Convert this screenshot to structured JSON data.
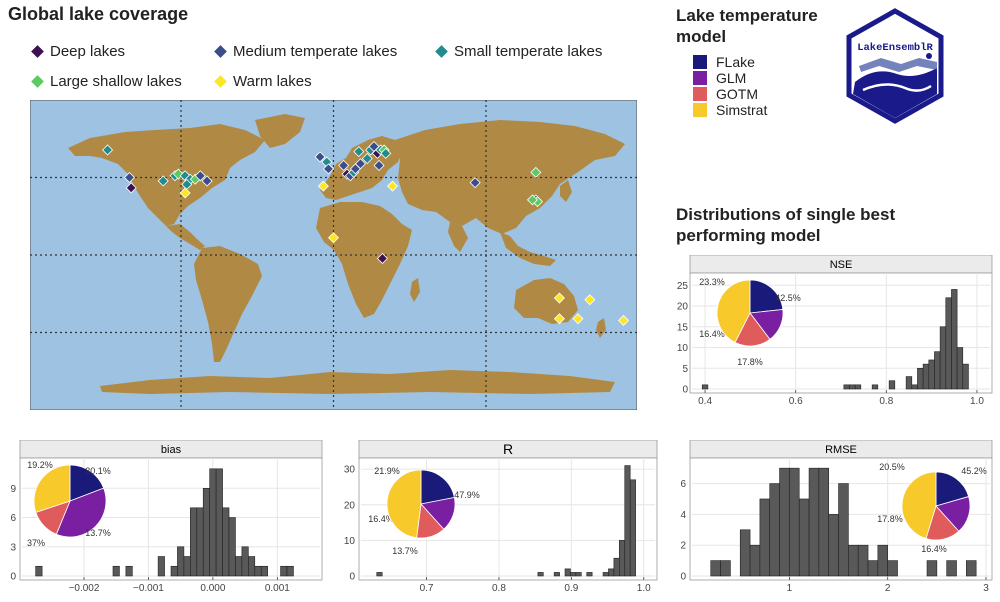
{
  "map": {
    "title": "Global lake coverage",
    "legend": [
      {
        "label": "Deep lakes",
        "color": "#3b1150"
      },
      {
        "label": "Medium temperate lakes",
        "color": "#3b4e8c"
      },
      {
        "label": "Small temperate lakes",
        "color": "#238a8d"
      },
      {
        "label": "Large shallow lakes",
        "color": "#5ec962"
      },
      {
        "label": "Warm lakes",
        "color": "#fde725"
      }
    ],
    "ocean_color": "#9ec2e2",
    "land_color": "#b08a45",
    "lakes": [
      {
        "lon": -134,
        "lat": 61,
        "type": 2
      },
      {
        "lon": -121,
        "lat": 45,
        "type": 1
      },
      {
        "lon": -120,
        "lat": 39,
        "type": 0
      },
      {
        "lon": -101,
        "lat": 43,
        "type": 2
      },
      {
        "lon": -94,
        "lat": 46,
        "type": 2
      },
      {
        "lon": -92,
        "lat": 47,
        "type": 3
      },
      {
        "lon": -88,
        "lat": 46,
        "type": 2
      },
      {
        "lon": -85,
        "lat": 44,
        "type": 2
      },
      {
        "lon": -82,
        "lat": 44,
        "type": 3
      },
      {
        "lon": -79,
        "lat": 46,
        "type": 1
      },
      {
        "lon": -75,
        "lat": 43,
        "type": 1
      },
      {
        "lon": -87,
        "lat": 41,
        "type": 2
      },
      {
        "lon": -88,
        "lat": 36,
        "type": 4
      },
      {
        "lon": -8,
        "lat": 57,
        "type": 1
      },
      {
        "lon": -4,
        "lat": 54,
        "type": 2
      },
      {
        "lon": -3,
        "lat": 50,
        "type": 1
      },
      {
        "lon": -6,
        "lat": 40,
        "type": 4
      },
      {
        "lon": 6,
        "lat": 52,
        "type": 1
      },
      {
        "lon": 8,
        "lat": 47,
        "type": 0
      },
      {
        "lon": 10,
        "lat": 46,
        "type": 1
      },
      {
        "lon": 12,
        "lat": 48,
        "type": 2
      },
      {
        "lon": 13,
        "lat": 50,
        "type": 1
      },
      {
        "lon": 15,
        "lat": 60,
        "type": 2
      },
      {
        "lon": 22,
        "lat": 61,
        "type": 2
      },
      {
        "lon": 24,
        "lat": 63,
        "type": 1
      },
      {
        "lon": 26,
        "lat": 59,
        "type": 0
      },
      {
        "lon": 28,
        "lat": 61,
        "type": 2
      },
      {
        "lon": 30,
        "lat": 61,
        "type": 3
      },
      {
        "lon": 31,
        "lat": 59,
        "type": 2
      },
      {
        "lon": 20,
        "lat": 56,
        "type": 2
      },
      {
        "lon": 27,
        "lat": 52,
        "type": 1
      },
      {
        "lon": 16,
        "lat": 53,
        "type": 1
      },
      {
        "lon": 35,
        "lat": 40,
        "type": 4
      },
      {
        "lon": 29,
        "lat": -2,
        "type": 0
      },
      {
        "lon": 0,
        "lat": 10,
        "type": 4
      },
      {
        "lon": 84,
        "lat": 42,
        "type": 1
      },
      {
        "lon": 120,
        "lat": 48,
        "type": 3
      },
      {
        "lon": 120,
        "lat": 32,
        "type": 1
      },
      {
        "lon": 121,
        "lat": 31,
        "type": 3
      },
      {
        "lon": 118,
        "lat": 32,
        "type": 3
      },
      {
        "lon": 134,
        "lat": -25,
        "type": 4
      },
      {
        "lon": 145,
        "lat": -37,
        "type": 4
      },
      {
        "lon": 152,
        "lat": -26,
        "type": 4
      },
      {
        "lon": 172,
        "lat": -38,
        "type": 4
      },
      {
        "lon": 134,
        "lat": -37,
        "type": 4
      }
    ]
  },
  "model_legend": {
    "title": "Lake temperature model",
    "items": [
      {
        "label": "FLake",
        "color": "#1a1a7a"
      },
      {
        "label": "GLM",
        "color": "#7b1fa2"
      },
      {
        "label": "GOTM",
        "color": "#e05c5c"
      },
      {
        "label": "Simstrat",
        "color": "#f7c92a"
      }
    ]
  },
  "logo": {
    "text": "LakeEnsemblR"
  },
  "distributions_title": "Distributions of single best performing model",
  "chart_data": [
    {
      "type": "bar",
      "title": "NSE",
      "xlim": [
        0.38,
        1.02
      ],
      "ylim": [
        0,
        27
      ],
      "xticks": [
        0.4,
        0.6,
        0.8,
        1.0
      ],
      "xtick_labels": [
        "0.4",
        "0.6",
        "0.8",
        "1.0"
      ],
      "yticks": [
        0,
        5,
        10,
        15,
        20,
        25
      ],
      "binwidth": 0.0125,
      "bins": [
        {
          "x": 0.4,
          "y": 1
        },
        {
          "x": 0.7125,
          "y": 1
        },
        {
          "x": 0.725,
          "y": 1
        },
        {
          "x": 0.7375,
          "y": 1
        },
        {
          "x": 0.775,
          "y": 1
        },
        {
          "x": 0.8125,
          "y": 2
        },
        {
          "x": 0.85,
          "y": 3
        },
        {
          "x": 0.8625,
          "y": 1
        },
        {
          "x": 0.875,
          "y": 5
        },
        {
          "x": 0.8875,
          "y": 6
        },
        {
          "x": 0.9,
          "y": 7
        },
        {
          "x": 0.9125,
          "y": 9
        },
        {
          "x": 0.925,
          "y": 15
        },
        {
          "x": 0.9375,
          "y": 22
        },
        {
          "x": 0.95,
          "y": 24
        },
        {
          "x": 0.9625,
          "y": 10
        },
        {
          "x": 0.975,
          "y": 6
        }
      ],
      "pie": {
        "values": [
          23.3,
          16.4,
          17.8,
          42.5
        ],
        "labels": [
          "23.3%",
          "16.4%",
          "17.8%",
          "42.5%"
        ]
      }
    },
    {
      "type": "bar",
      "title": "bias",
      "xlim": [
        -0.0029,
        0.0016
      ],
      "ylim": [
        0,
        11.7
      ],
      "xticks": [
        -0.002,
        -0.001,
        0.0,
        0.001
      ],
      "xtick_labels": [
        "−0.002",
        "−0.001",
        "0.000",
        "0.001"
      ],
      "yticks": [
        0,
        3,
        6,
        9
      ],
      "yticklabels": [
        "0",
        "3",
        "6",
        "9"
      ],
      "binwidth": 0.0001,
      "bins": [
        {
          "x": -0.0027,
          "y": 1
        },
        {
          "x": -0.0015,
          "y": 1
        },
        {
          "x": -0.0013,
          "y": 1
        },
        {
          "x": -0.0008,
          "y": 2
        },
        {
          "x": -0.0006,
          "y": 1
        },
        {
          "x": -0.0005,
          "y": 3
        },
        {
          "x": -0.0004,
          "y": 2
        },
        {
          "x": -0.0003,
          "y": 7
        },
        {
          "x": -0.0002,
          "y": 7
        },
        {
          "x": -0.0001,
          "y": 9
        },
        {
          "x": 0.0,
          "y": 11
        },
        {
          "x": 0.0001,
          "y": 11
        },
        {
          "x": 0.0002,
          "y": 7
        },
        {
          "x": 0.0003,
          "y": 6
        },
        {
          "x": 0.0004,
          "y": 2
        },
        {
          "x": 0.0005,
          "y": 3
        },
        {
          "x": 0.0006,
          "y": 2
        },
        {
          "x": 0.0007,
          "y": 1
        },
        {
          "x": 0.0008,
          "y": 1
        },
        {
          "x": 0.0011,
          "y": 1
        },
        {
          "x": 0.0012,
          "y": 1
        }
      ],
      "pie": {
        "values": [
          19.2,
          37,
          13.7,
          30.1
        ],
        "labels": [
          "19.2%",
          "37%",
          "13.7%",
          "30.1%"
        ]
      }
    },
    {
      "type": "bar",
      "title": "R",
      "xlim": [
        0.615,
        1.01
      ],
      "ylim": [
        0,
        32
      ],
      "xticks": [
        0.7,
        0.8,
        0.9,
        1.0
      ],
      "xtick_labels": [
        "0.7",
        "0.8",
        "0.9",
        "1.0"
      ],
      "yticks": [
        0,
        10,
        20,
        30
      ],
      "binwidth": 0.0075,
      "bins": [
        {
          "x": 0.635,
          "y": 1
        },
        {
          "x": 0.8575,
          "y": 1
        },
        {
          "x": 0.88,
          "y": 1
        },
        {
          "x": 0.895,
          "y": 2
        },
        {
          "x": 0.9025,
          "y": 1
        },
        {
          "x": 0.91,
          "y": 1
        },
        {
          "x": 0.925,
          "y": 1
        },
        {
          "x": 0.9475,
          "y": 1
        },
        {
          "x": 0.955,
          "y": 2
        },
        {
          "x": 0.9625,
          "y": 5
        },
        {
          "x": 0.97,
          "y": 10
        },
        {
          "x": 0.9775,
          "y": 31
        },
        {
          "x": 0.985,
          "y": 27
        }
      ],
      "pie": {
        "values": [
          21.9,
          16.4,
          13.7,
          47.9
        ],
        "labels": [
          "21.9%",
          "16.4%",
          "13.7%",
          "47.9%"
        ]
      }
    },
    {
      "type": "bar",
      "title": "RMSE",
      "xlim": [
        0.05,
        3.0
      ],
      "ylim": [
        0,
        7.4
      ],
      "xticks": [
        1,
        2,
        3
      ],
      "xtick_labels": [
        "1",
        "2",
        "3"
      ],
      "yticks": [
        0,
        2,
        4,
        6
      ],
      "binwidth": 0.1,
      "bins": [
        {
          "x": 0.25,
          "y": 1
        },
        {
          "x": 0.35,
          "y": 1
        },
        {
          "x": 0.55,
          "y": 3
        },
        {
          "x": 0.65,
          "y": 2
        },
        {
          "x": 0.75,
          "y": 5
        },
        {
          "x": 0.85,
          "y": 6
        },
        {
          "x": 0.95,
          "y": 7
        },
        {
          "x": 1.05,
          "y": 7
        },
        {
          "x": 1.15,
          "y": 5
        },
        {
          "x": 1.25,
          "y": 7
        },
        {
          "x": 1.35,
          "y": 7
        },
        {
          "x": 1.45,
          "y": 4
        },
        {
          "x": 1.55,
          "y": 6
        },
        {
          "x": 1.65,
          "y": 2
        },
        {
          "x": 1.75,
          "y": 2
        },
        {
          "x": 1.85,
          "y": 1
        },
        {
          "x": 1.95,
          "y": 2
        },
        {
          "x": 2.05,
          "y": 1
        },
        {
          "x": 2.45,
          "y": 1
        },
        {
          "x": 2.65,
          "y": 1
        },
        {
          "x": 2.85,
          "y": 1
        }
      ],
      "pie": {
        "values": [
          20.5,
          17.8,
          16.4,
          45.2
        ],
        "labels": [
          "20.5%",
          "17.8%",
          "16.4%",
          "45.2%"
        ]
      }
    }
  ]
}
